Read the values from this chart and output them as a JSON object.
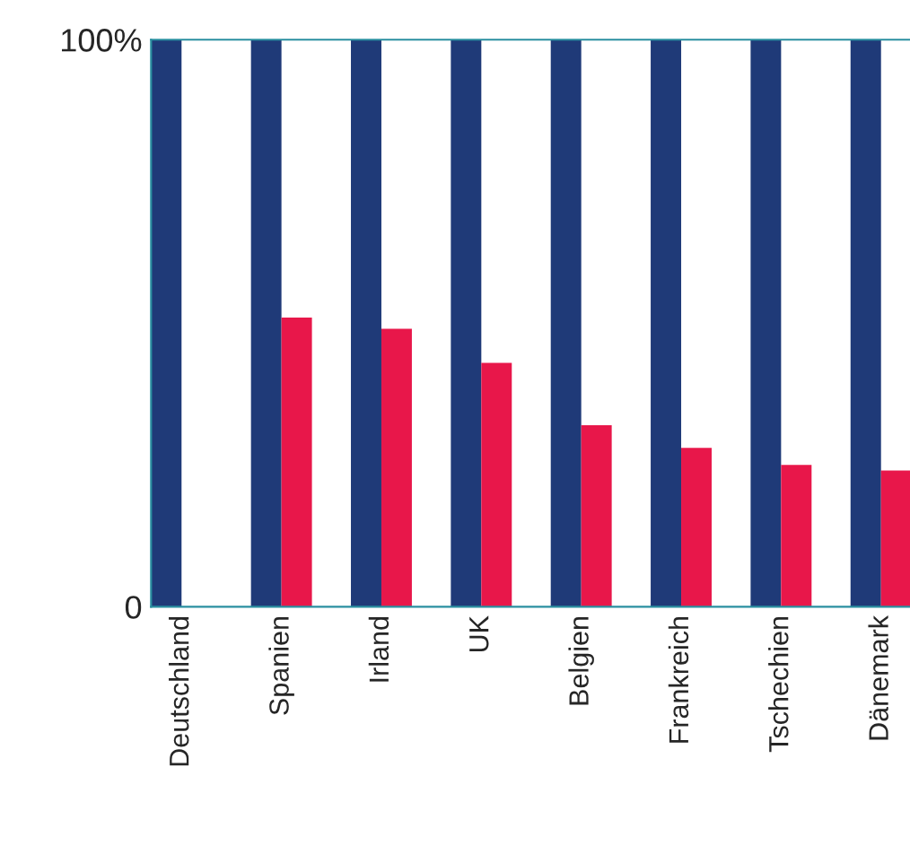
{
  "chart_data": {
    "type": "bar",
    "categories": [
      "Deutschland",
      "Spanien",
      "Irland",
      "UK",
      "Belgien",
      "Frankreich",
      "Tschechien",
      "Dänemark"
    ],
    "series": [
      {
        "color": "#1f3a78",
        "values": [
          100,
          100,
          100,
          100,
          100,
          100,
          100,
          100
        ]
      },
      {
        "color": "#e8174a",
        "values": [
          null,
          51,
          49,
          43,
          32,
          28,
          25,
          24
        ]
      }
    ],
    "ylim": [
      0,
      100
    ],
    "yticks": [
      0,
      {
        "value": 100,
        "label": "100%"
      }
    ],
    "grid": false,
    "legend": false
  }
}
